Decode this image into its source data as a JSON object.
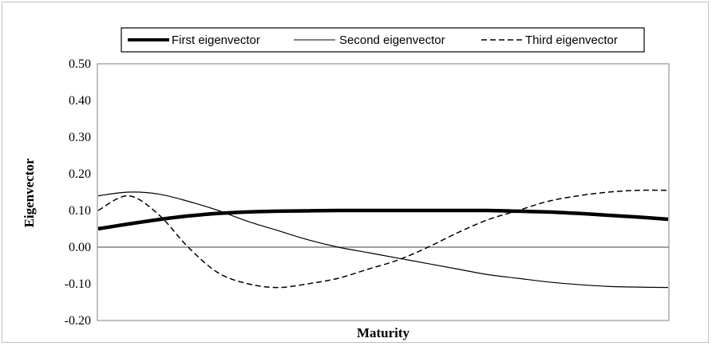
{
  "chart_data": {
    "type": "line",
    "title": "",
    "xlabel": "Maturity",
    "ylabel": "Eigenvector",
    "ylim": [
      -0.2,
      0.5
    ],
    "yticks": [
      "0.50",
      "0.40",
      "0.30",
      "0.20",
      "0.10",
      "0.00",
      "-0.10",
      "-0.20"
    ],
    "ytick_values": [
      0.5,
      0.4,
      0.3,
      0.2,
      0.1,
      0.0,
      -0.1,
      -0.2
    ],
    "x": [
      1,
      2,
      3,
      4,
      5,
      6,
      7,
      8,
      9,
      10,
      11,
      12,
      13,
      14,
      15,
      16,
      17,
      18,
      19,
      20
    ],
    "grid": false,
    "legend_position": "top",
    "series": [
      {
        "name": "First eigenvector",
        "style": "thick-solid",
        "color": "#000000",
        "values": [
          0.05,
          0.063,
          0.075,
          0.085,
          0.092,
          0.096,
          0.098,
          0.099,
          0.1,
          0.1,
          0.1,
          0.1,
          0.1,
          0.1,
          0.098,
          0.096,
          0.092,
          0.087,
          0.082,
          0.076
        ]
      },
      {
        "name": "Second eigenvector",
        "style": "thin-solid",
        "color": "#000000",
        "values": [
          0.14,
          0.15,
          0.145,
          0.125,
          0.1,
          0.07,
          0.045,
          0.02,
          0.0,
          -0.015,
          -0.03,
          -0.045,
          -0.06,
          -0.075,
          -0.085,
          -0.095,
          -0.102,
          -0.107,
          -0.109,
          -0.11
        ]
      },
      {
        "name": "Third eigenvector",
        "style": "dashed",
        "color": "#000000",
        "values": [
          0.1,
          0.14,
          0.09,
          0.0,
          -0.07,
          -0.1,
          -0.11,
          -0.1,
          -0.085,
          -0.06,
          -0.035,
          0.0,
          0.04,
          0.075,
          0.1,
          0.125,
          0.14,
          0.15,
          0.155,
          0.155
        ]
      }
    ]
  }
}
